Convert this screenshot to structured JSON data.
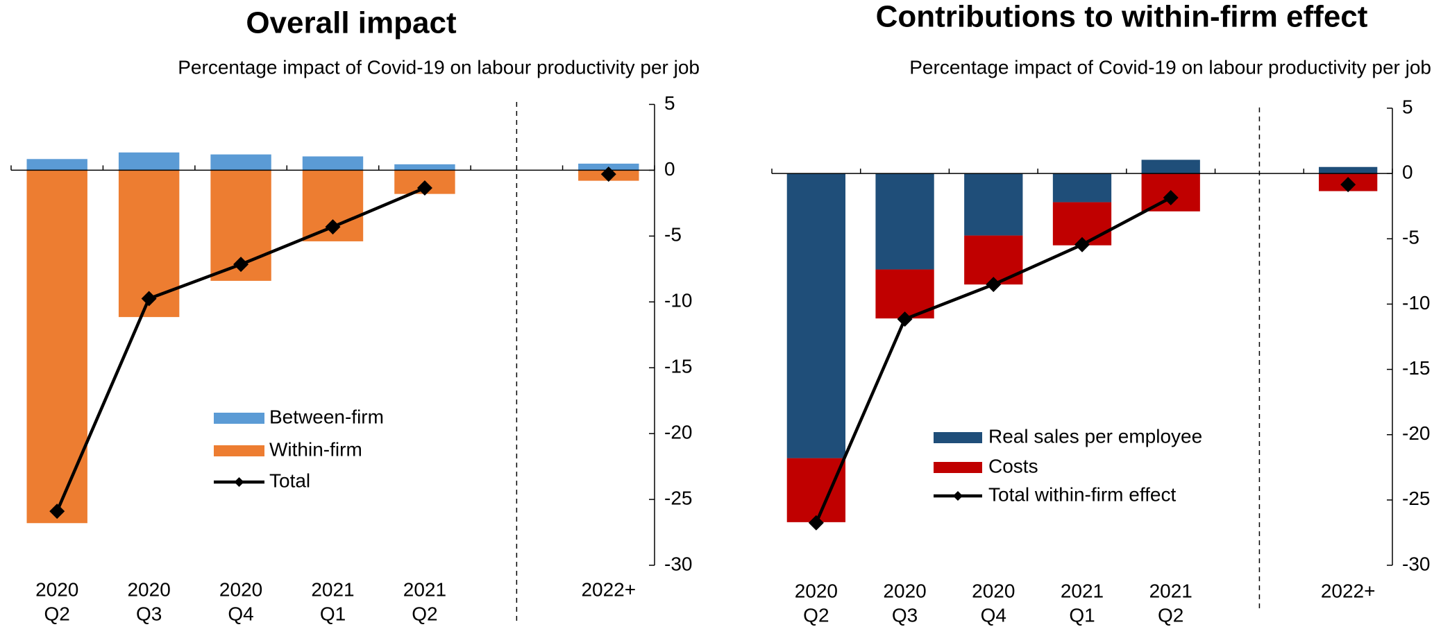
{
  "chart_data": [
    {
      "type": "bar",
      "stacked": true,
      "title": "Overall impact",
      "subtitle": "Percentage impact of Covid-19 on labour productivity per job",
      "categories": [
        [
          "2020",
          "Q2"
        ],
        [
          "2020",
          "Q3"
        ],
        [
          "2020",
          "Q4"
        ],
        [
          "2021",
          "Q1"
        ],
        [
          "2021",
          "Q2"
        ],
        null,
        [
          "2022+"
        ]
      ],
      "series": [
        {
          "name": "Between-firm",
          "type": "bar",
          "color": "#5b9bd5",
          "values": [
            0.85,
            1.35,
            1.2,
            1.05,
            0.45,
            null,
            0.5
          ]
        },
        {
          "name": "Within-firm",
          "type": "bar",
          "color": "#ed7d31",
          "values": [
            -26.8,
            -11.15,
            -8.4,
            -5.4,
            -1.8,
            null,
            -0.8
          ]
        },
        {
          "name": "Total",
          "type": "line",
          "color": "#000000",
          "values": [
            -25.9,
            -9.75,
            -7.15,
            -4.3,
            -1.35,
            null,
            -0.3
          ]
        }
      ],
      "ylim": [
        -30,
        5
      ],
      "yticks": [
        5,
        0,
        -5,
        -10,
        -15,
        -20,
        -25,
        -30
      ]
    },
    {
      "type": "bar",
      "stacked": true,
      "title": "Contributions to within-firm effect",
      "subtitle": "Percentage impact of Covid-19 on labour productivity per job",
      "categories": [
        [
          "2020",
          "Q2"
        ],
        [
          "2020",
          "Q3"
        ],
        [
          "2020",
          "Q4"
        ],
        [
          "2021",
          "Q1"
        ],
        [
          "2021",
          "Q2"
        ],
        null,
        [
          "2022+"
        ]
      ],
      "series": [
        {
          "name": "Real sales per employee",
          "type": "bar",
          "color": "#1f4e79",
          "values": [
            -21.8,
            -7.35,
            -4.75,
            -2.2,
            1.05,
            null,
            0.5
          ]
        },
        {
          "name": "Costs",
          "type": "bar",
          "color": "#c00000",
          "values": [
            -4.9,
            -3.75,
            -3.75,
            -3.3,
            -2.9,
            null,
            -1.35
          ]
        },
        {
          "name": "Total within-firm effect",
          "type": "line",
          "color": "#000000",
          "values": [
            -26.75,
            -11.15,
            -8.5,
            -5.45,
            -1.85,
            null,
            -0.85
          ]
        }
      ],
      "ylim": [
        -30,
        5
      ],
      "yticks": [
        5,
        0,
        -5,
        -10,
        -15,
        -20,
        -25,
        -30
      ]
    }
  ]
}
